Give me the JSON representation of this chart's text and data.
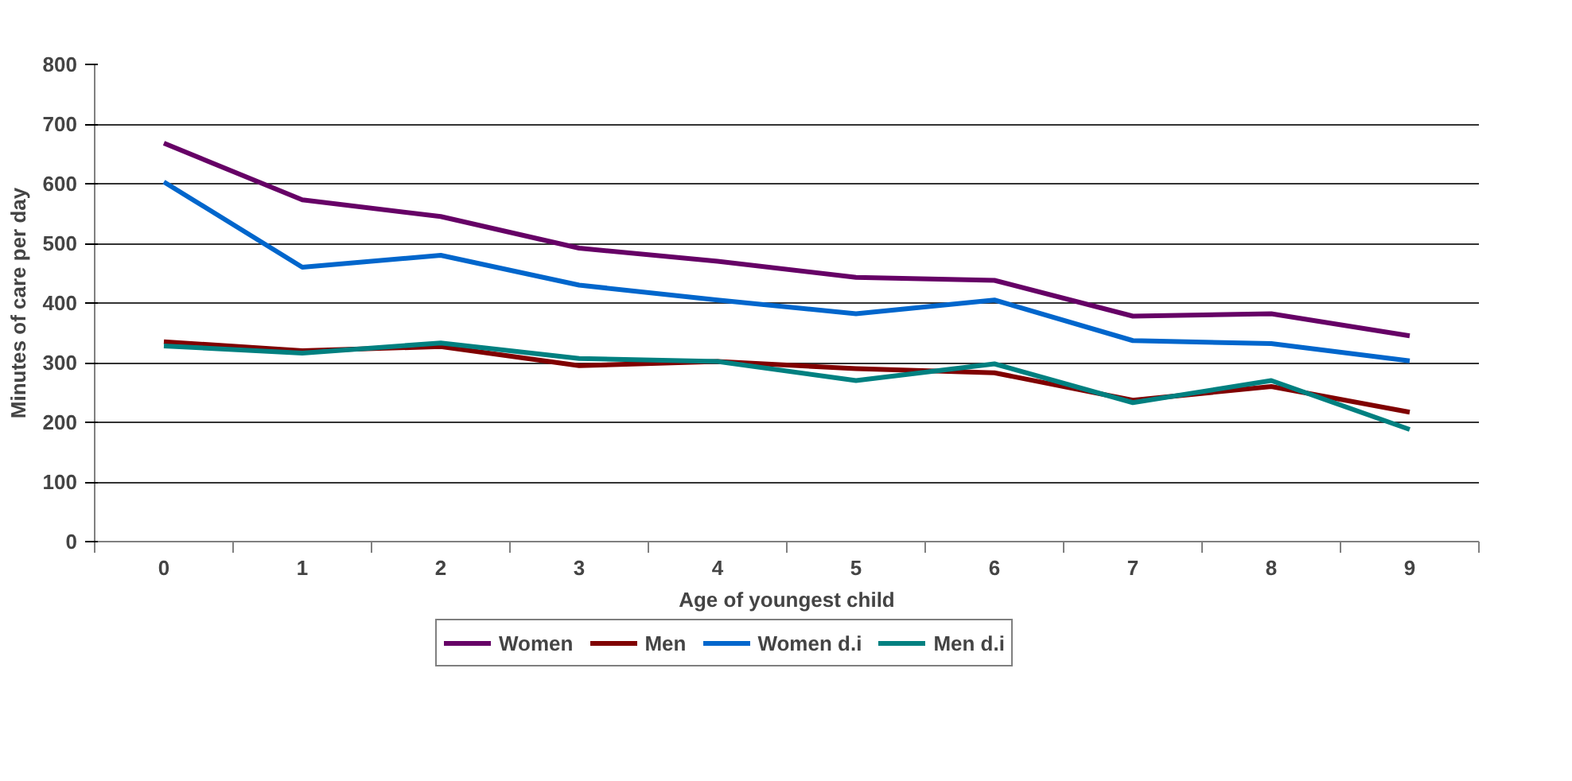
{
  "chart_data": {
    "type": "line",
    "xlabel": "Age of youngest child",
    "ylabel": "Minutes of care per day",
    "categories": [
      "0",
      "1",
      "2",
      "3",
      "4",
      "5",
      "6",
      "7",
      "8",
      "9"
    ],
    "series": [
      {
        "name": "Women",
        "color": "#660066",
        "values": [
          668,
          573,
          545,
          492,
          470,
          443,
          438,
          378,
          382,
          345
        ]
      },
      {
        "name": "Men",
        "color": "#800000",
        "values": [
          335,
          320,
          327,
          295,
          302,
          290,
          283,
          237,
          260,
          217
        ]
      },
      {
        "name": "Women d.i",
        "color": "#0066cc",
        "values": [
          603,
          460,
          480,
          430,
          405,
          382,
          405,
          337,
          332,
          303
        ]
      },
      {
        "name": "Men d.i",
        "color": "#008080",
        "values": [
          328,
          316,
          333,
          307,
          302,
          270,
          298,
          233,
          270,
          188
        ]
      }
    ],
    "ylim": [
      0,
      800
    ],
    "yticks": [
      0,
      100,
      200,
      300,
      400,
      500,
      600,
      700,
      800
    ],
    "grid": "y",
    "legend": "bottom",
    "marker": "none",
    "line_style": "solid"
  }
}
